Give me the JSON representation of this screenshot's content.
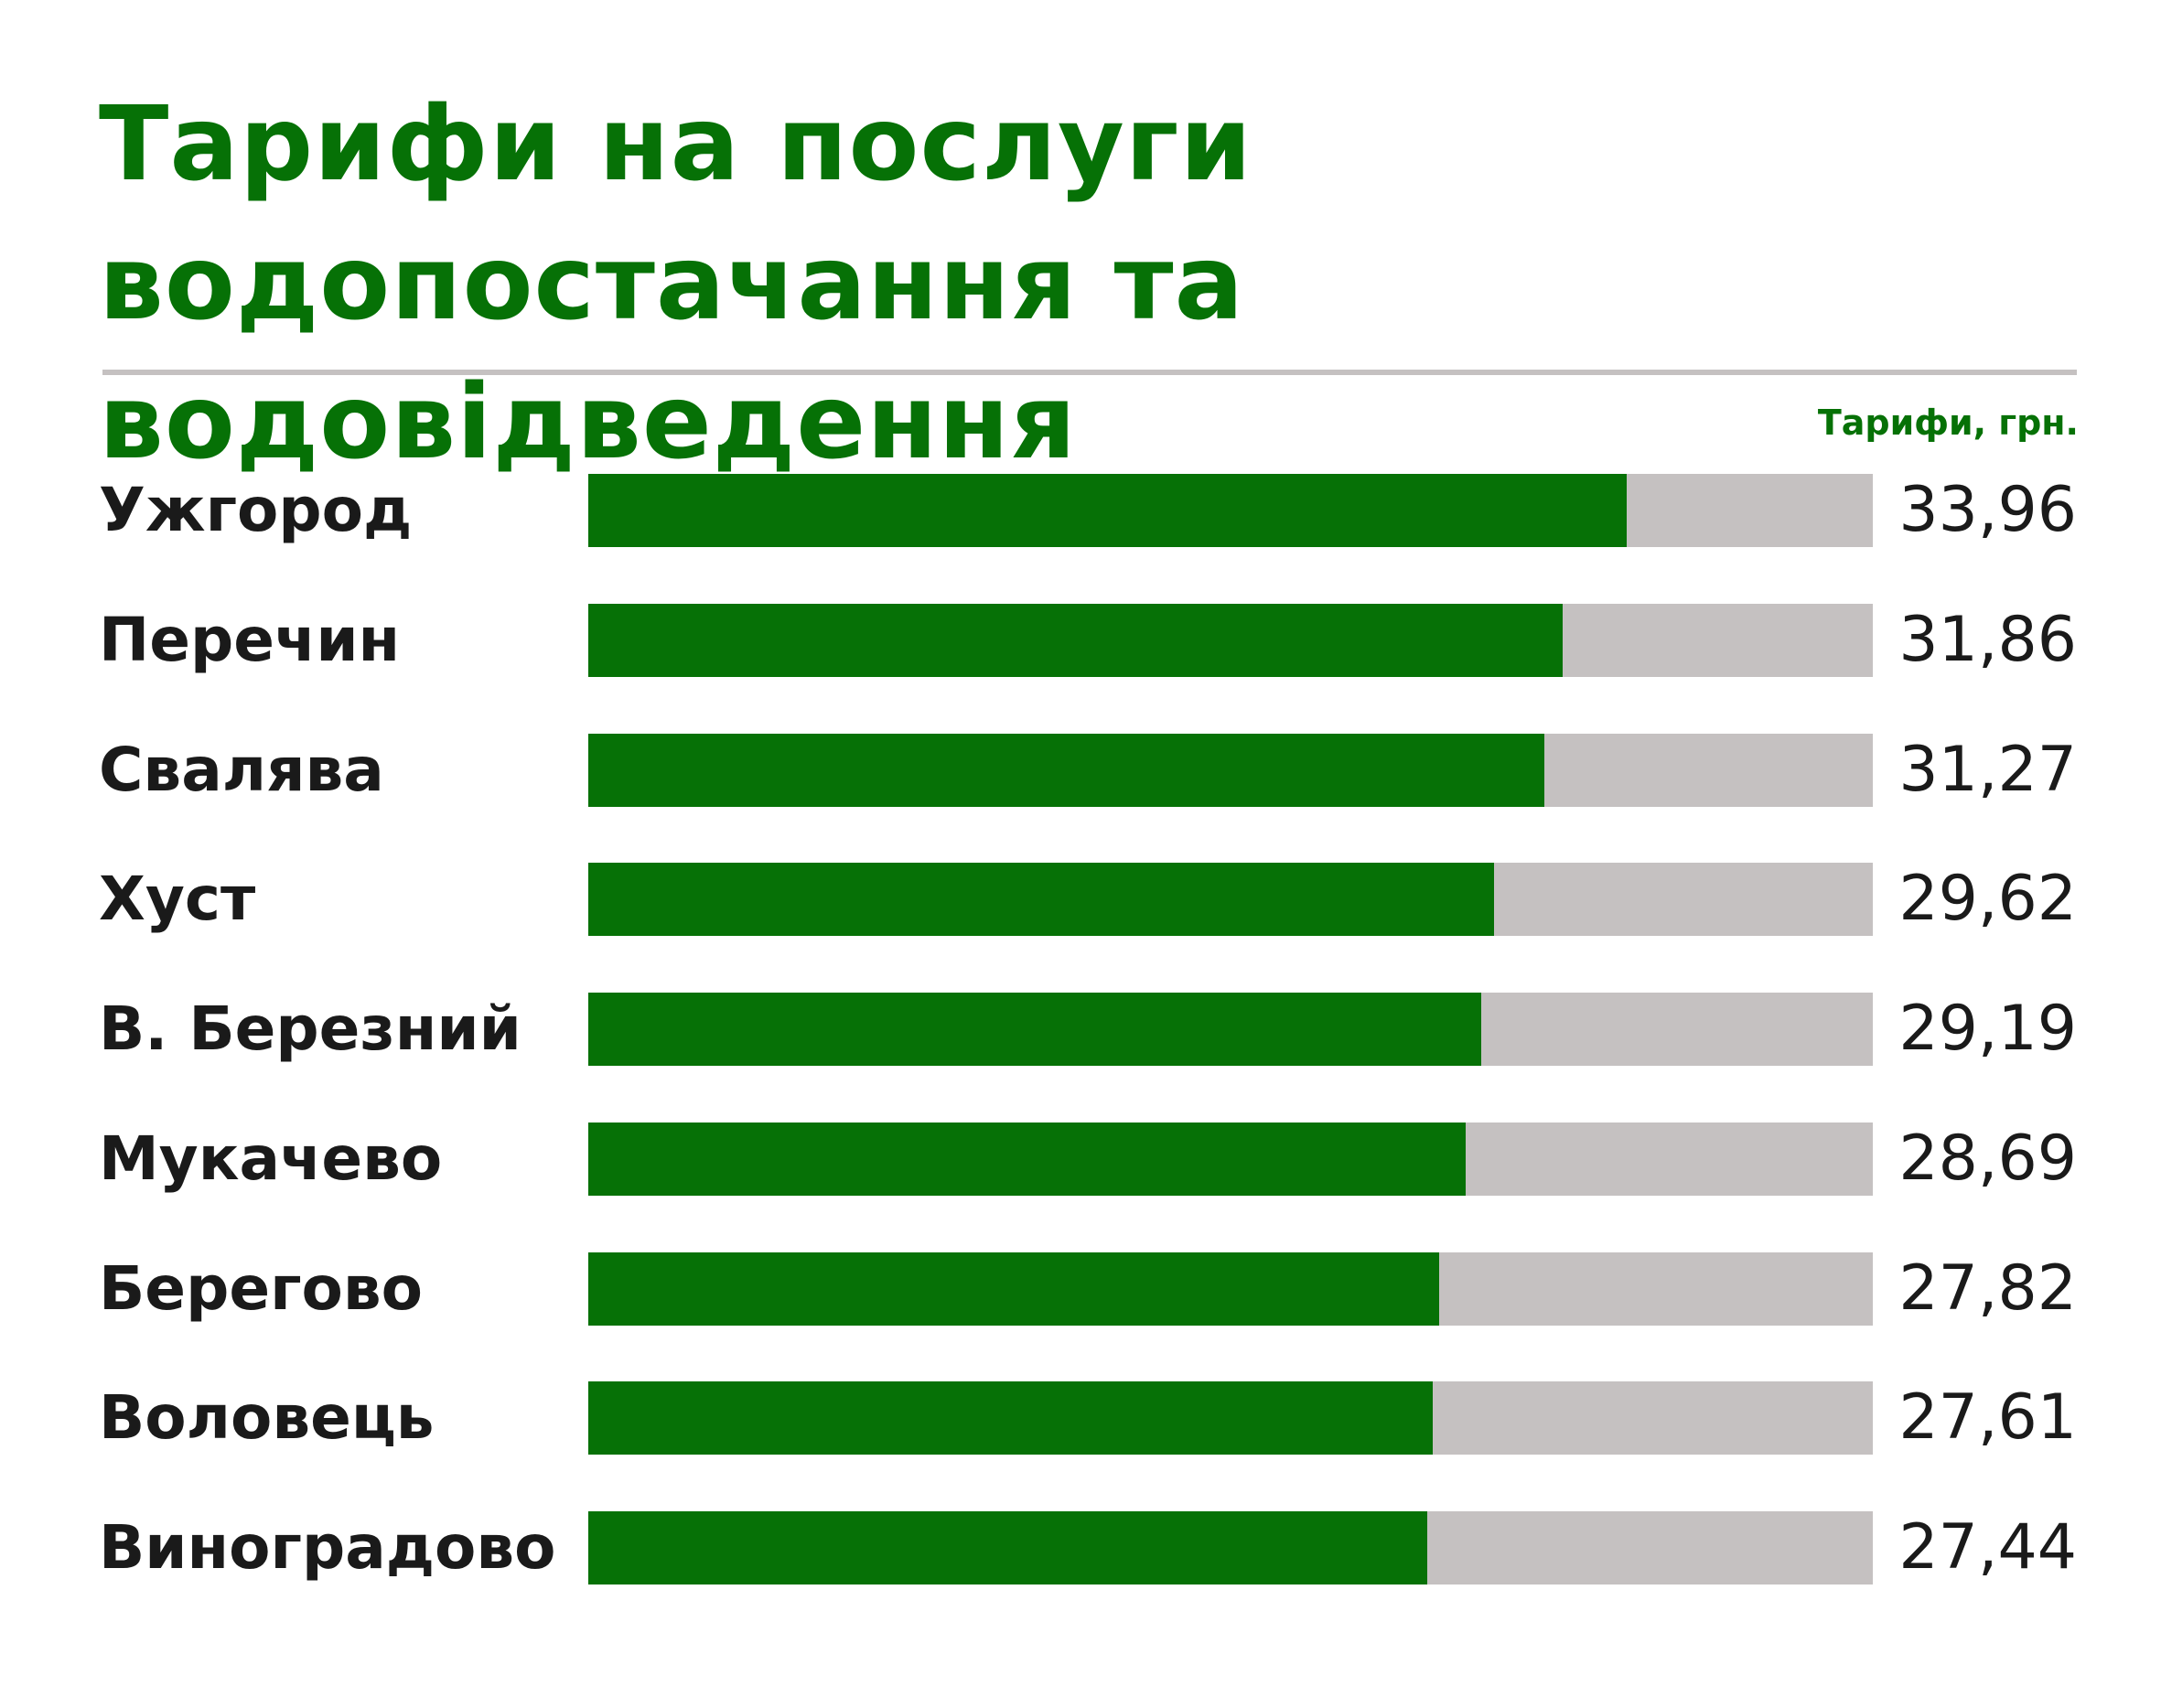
{
  "colors": {
    "accent": "#067106",
    "track": "#c5c1c1",
    "text": "#1a1a1a"
  },
  "chart_data": {
    "type": "bar",
    "orientation": "horizontal",
    "title": "Тарифи на послуги водопостачання та водовідведення",
    "unit_label": "Тарифи, грн.",
    "categories": [
      "Ужгород",
      "Перечин",
      "Свалява",
      "Хуст",
      "В. Березний",
      "Мукачево",
      "Берегово",
      "Воловець",
      "Виноградово"
    ],
    "values": [
      33.96,
      31.86,
      31.27,
      29.62,
      29.19,
      28.69,
      27.82,
      27.61,
      27.44
    ],
    "value_labels": [
      "33,96",
      "31,86",
      "31,27",
      "29,62",
      "29,19",
      "28,69",
      "27,82",
      "27,61",
      "27,44"
    ],
    "xlim": [
      0,
      42
    ],
    "grid": false,
    "legend": "none"
  }
}
